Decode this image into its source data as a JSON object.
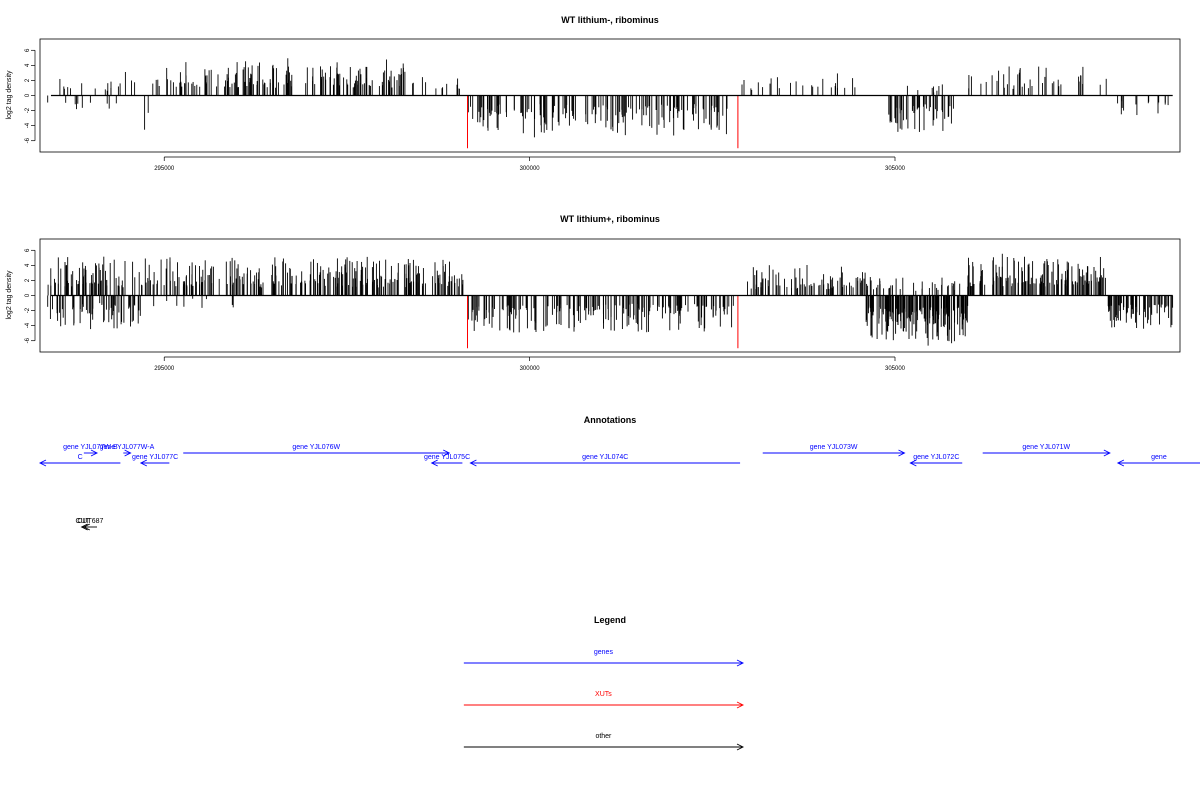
{
  "colors": {
    "genes": "#0000ff",
    "XUTs": "#ff0000",
    "other": "#000000",
    "bars": "#000000",
    "highlight": "#ff0000"
  },
  "chart_data": [
    {
      "type": "bar",
      "title": "WT lithium-, ribominus",
      "ylabel": "log2 tag density",
      "xlim": [
        293300,
        308900
      ],
      "ylim": [
        -7.5,
        7.5
      ],
      "xticks": [
        295000,
        300000,
        305000
      ],
      "xtick_labels": [
        "295000",
        "300000",
        "305000"
      ],
      "yticks": [
        -6,
        -4,
        -2,
        0,
        2,
        4,
        6
      ],
      "ytick_labels": [
        "-6",
        "-4",
        "-2",
        "0",
        "2",
        "4",
        "6"
      ],
      "grid": false,
      "highlighted_bars": [
        {
          "x": 299150,
          "value": -7
        },
        {
          "x": 302850,
          "value": -7
        }
      ],
      "segments": [
        {
          "start": 293400,
          "end": 294400,
          "sign": 1,
          "amp": 1.5,
          "count": 14
        },
        {
          "start": 293400,
          "end": 294400,
          "sign": -1,
          "amp": 1.8,
          "count": 10
        },
        {
          "start": 294400,
          "end": 295200,
          "sign": 1,
          "amp": 2.2,
          "count": 12
        },
        {
          "start": 294700,
          "end": 294800,
          "sign": -1,
          "amp": 3.5,
          "count": 2
        },
        {
          "start": 295200,
          "end": 298300,
          "sign": 1,
          "amp": 2.8,
          "count": 160
        },
        {
          "start": 298300,
          "end": 299100,
          "sign": 1,
          "amp": 1.5,
          "count": 12
        },
        {
          "start": 299150,
          "end": 302800,
          "sign": -1,
          "amp": 3.2,
          "count": 170
        },
        {
          "start": 302900,
          "end": 304500,
          "sign": 1,
          "amp": 2.0,
          "count": 25
        },
        {
          "start": 304900,
          "end": 305800,
          "sign": -1,
          "amp": 3.0,
          "count": 55
        },
        {
          "start": 304900,
          "end": 305800,
          "sign": 1,
          "amp": 1.0,
          "count": 8
        },
        {
          "start": 306000,
          "end": 307900,
          "sign": 1,
          "amp": 2.4,
          "count": 40
        },
        {
          "start": 308000,
          "end": 308800,
          "sign": -1,
          "amp": 1.8,
          "count": 15
        }
      ]
    },
    {
      "type": "bar",
      "title": "WT lithium+, ribominus",
      "ylabel": "log2 tag density",
      "xlim": [
        293300,
        308900
      ],
      "ylim": [
        -7.5,
        7.5
      ],
      "xticks": [
        295000,
        300000,
        305000
      ],
      "xtick_labels": [
        "295000",
        "300000",
        "305000"
      ],
      "yticks": [
        -6,
        -4,
        -2,
        0,
        2,
        4,
        6
      ],
      "ytick_labels": [
        "-6",
        "-4",
        "-2",
        "0",
        "2",
        "4",
        "6"
      ],
      "grid": false,
      "highlighted_bars": [
        {
          "x": 299150,
          "value": -7
        },
        {
          "x": 302850,
          "value": -7
        }
      ],
      "segments": [
        {
          "start": 293400,
          "end": 299100,
          "sign": 1,
          "amp": 3.0,
          "count": 320
        },
        {
          "start": 293400,
          "end": 294700,
          "sign": -1,
          "amp": 2.6,
          "count": 60
        },
        {
          "start": 294700,
          "end": 296000,
          "sign": -1,
          "amp": 1.0,
          "count": 10
        },
        {
          "start": 299150,
          "end": 302800,
          "sign": -1,
          "amp": 3.0,
          "count": 200
        },
        {
          "start": 302900,
          "end": 304600,
          "sign": 1,
          "amp": 2.3,
          "count": 80
        },
        {
          "start": 304600,
          "end": 306000,
          "sign": -1,
          "amp": 3.8,
          "count": 180
        },
        {
          "start": 304600,
          "end": 306000,
          "sign": 1,
          "amp": 1.6,
          "count": 40
        },
        {
          "start": 306000,
          "end": 307900,
          "sign": 1,
          "amp": 3.2,
          "count": 140
        },
        {
          "start": 307900,
          "end": 308800,
          "sign": -1,
          "amp": 2.6,
          "count": 70
        }
      ]
    }
  ],
  "annotations": {
    "title": "Annotations",
    "items": [
      {
        "label": "C",
        "start": 293300,
        "end": 294400,
        "direction": "reverse",
        "type": "genes",
        "row": 2
      },
      {
        "label": "gene YJL077W-B",
        "start": 293900,
        "end": 294080,
        "direction": "forward",
        "type": "genes",
        "row": 1
      },
      {
        "label": "gene YJL077W-A",
        "start": 294440,
        "end": 294540,
        "direction": "forward",
        "type": "genes",
        "row": 1
      },
      {
        "label": "gene YJL077C",
        "start": 294680,
        "end": 295070,
        "direction": "reverse",
        "type": "genes",
        "row": 2
      },
      {
        "label": "gene YJL076W",
        "start": 295260,
        "end": 298900,
        "direction": "forward",
        "type": "genes",
        "row": 1
      },
      {
        "label": "gene YJL075C",
        "start": 298660,
        "end": 299080,
        "direction": "reverse",
        "type": "genes",
        "row": 2
      },
      {
        "label": "gene YJL074C",
        "start": 299190,
        "end": 302880,
        "direction": "reverse",
        "type": "genes",
        "row": 2
      },
      {
        "label": "gene YJL073W",
        "start": 303190,
        "end": 305130,
        "direction": "forward",
        "type": "genes",
        "row": 1
      },
      {
        "label": "gene YJL072C",
        "start": 305210,
        "end": 305920,
        "direction": "reverse",
        "type": "genes",
        "row": 2
      },
      {
        "label": "gene YJL071W",
        "start": 306200,
        "end": 307940,
        "direction": "forward",
        "type": "genes",
        "row": 1
      },
      {
        "label": "gene",
        "start": 308050,
        "end": 309400,
        "direction": "reverse",
        "type": "genes",
        "row": 2
      },
      {
        "label": "CUT",
        "start": 293870,
        "end": 293900,
        "direction": "reverse",
        "type": "other",
        "row": 3
      },
      {
        "label": "CUT687",
        "start": 293900,
        "end": 294080,
        "direction": "reverse",
        "type": "other",
        "row": 3
      }
    ]
  },
  "legend": {
    "title": "Legend",
    "items": [
      {
        "label": "genes",
        "type": "genes"
      },
      {
        "label": "XUTs",
        "type": "XUTs"
      },
      {
        "label": "other",
        "type": "other"
      }
    ]
  }
}
